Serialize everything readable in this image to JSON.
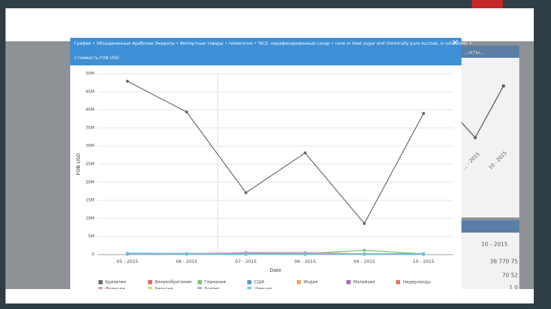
{
  "modal": {
    "title_line1": "График • Объединенные Арабские Эмираты • Импортные товары • помесячно • 'NCE: нерафинированный сахар • cane or beet sugar and chemically pure sucrose, in solid form' •",
    "title_line2": "Стоимость FOB USD"
  },
  "dashboard": {
    "panel_title": "...нты...",
    "column_label": "10 - 2015",
    "cell1": "38 770 75",
    "cell2": "70 52",
    "cell3": "1 0",
    "mini_labels": [
      "... - 2015",
      "10 - 2015"
    ]
  },
  "chart_data": {
    "type": "line",
    "x_label": "Date",
    "y_label": "FOB USD",
    "categories": [
      "05 - 2015",
      "06 - 2015",
      "07 - 2015",
      "08 - 2015",
      "09 - 2015",
      "10 - 2015"
    ],
    "ylim": [
      0,
      50000000
    ],
    "yticks": [
      0,
      {
        "value": 5000000,
        "label": "5M"
      },
      {
        "value": 10000000,
        "label": "10M"
      },
      {
        "value": 15000000,
        "label": "15M"
      },
      {
        "value": 20000000,
        "label": "20M"
      },
      {
        "value": 25000000,
        "label": "25M"
      },
      {
        "value": 30000000,
        "label": "30M"
      },
      {
        "value": 35000000,
        "label": "35M"
      },
      {
        "value": 40000000,
        "label": "40M"
      },
      {
        "value": 45000000,
        "label": "45M"
      },
      {
        "value": 50000000,
        "label": "50M"
      }
    ],
    "grid": true,
    "series": [
      {
        "name": "Бразилия",
        "color": "#6b6b6b",
        "values": [
          47900000,
          39400000,
          17100000,
          28100000,
          8600000,
          39000000
        ]
      },
      {
        "name": "Великобритания",
        "color": "#e8636b",
        "values": [
          100000,
          100000,
          200000,
          100000,
          100000,
          100000
        ]
      },
      {
        "name": "Германия",
        "color": "#7cc66e",
        "values": [
          200000,
          300000,
          500000,
          300000,
          1200000,
          200000
        ]
      },
      {
        "name": "США",
        "color": "#5b9bd5",
        "values": [
          400000,
          300000,
          300000,
          200000,
          200000,
          300000
        ]
      },
      {
        "name": "Индия",
        "color": "#f4a460",
        "values": [
          100000,
          100000,
          100000,
          100000,
          100000,
          100000
        ]
      },
      {
        "name": "Малайзия",
        "color": "#b068c8",
        "values": [
          100000,
          100000,
          100000,
          100000,
          100000,
          100000
        ]
      },
      {
        "name": "Нидерланды",
        "color": "#e07a5f",
        "values": [
          100000,
          100000,
          100000,
          100000,
          100000,
          100000
        ]
      },
      {
        "name": "Франция",
        "color": "#e58fc0",
        "values": [
          300000,
          200000,
          600000,
          600000,
          200000,
          100000
        ]
      },
      {
        "name": "Бельгия",
        "color": "#d6d65a",
        "values": [
          100000,
          100000,
          100000,
          100000,
          100000,
          100000
        ]
      },
      {
        "name": "Египет",
        "color": "#a7a0d8",
        "values": [
          100000,
          100000,
          100000,
          100000,
          100000,
          100000
        ]
      },
      {
        "name": "Швеция",
        "color": "#5ec8d8",
        "values": [
          300000,
          200000,
          200000,
          200000,
          200000,
          200000
        ]
      }
    ]
  }
}
